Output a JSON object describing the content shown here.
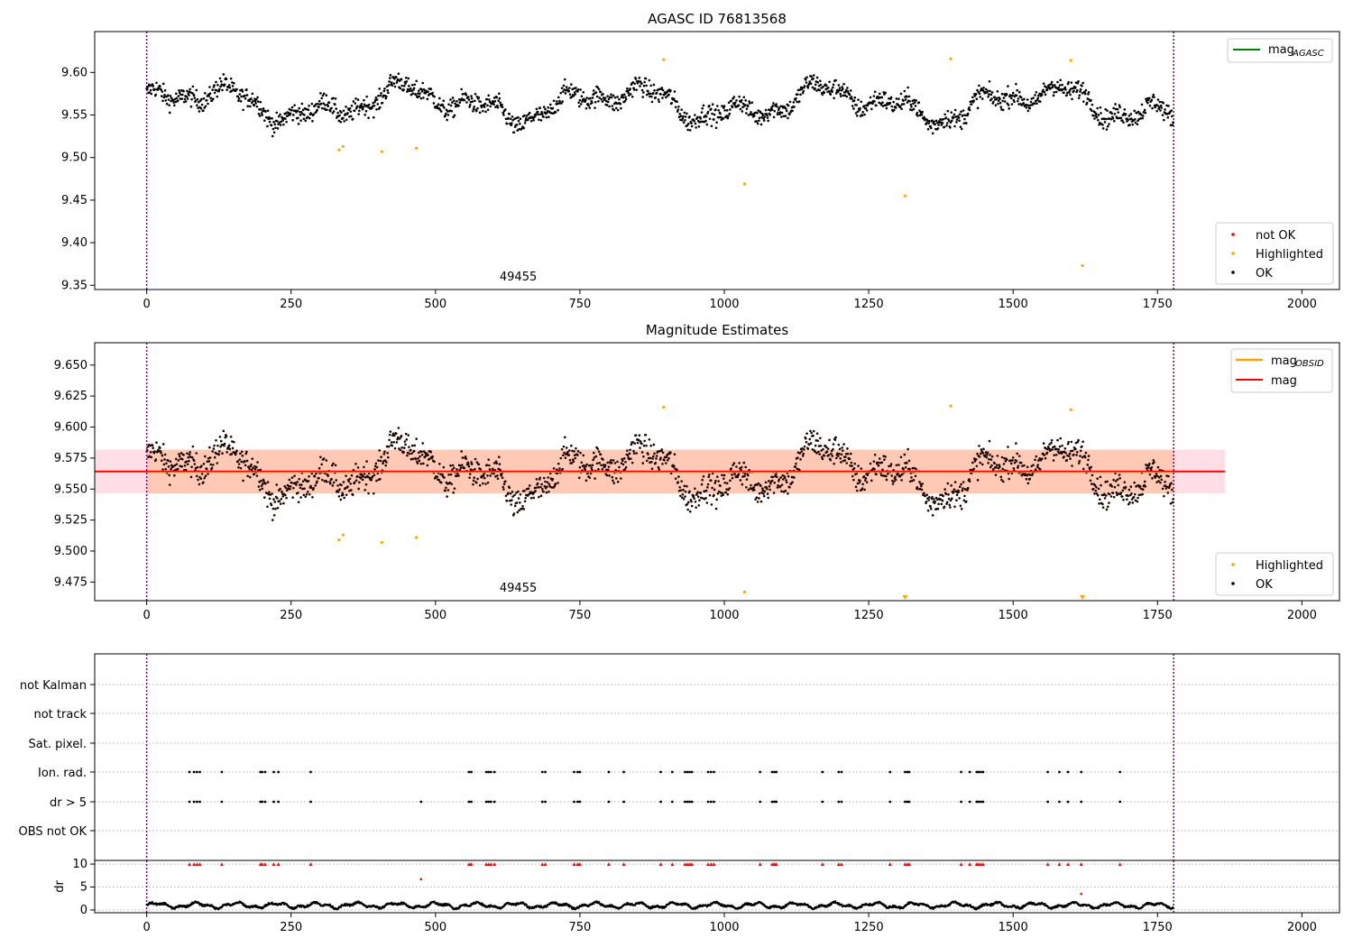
{
  "chart_data": [
    {
      "type": "scatter",
      "title": "AGASC ID 76813568",
      "xlim": [
        -90,
        2065
      ],
      "ylim": [
        9.345,
        9.648
      ],
      "xticks": [
        "0",
        "250",
        "500",
        "750",
        "1000",
        "1250",
        "1500",
        "1750",
        "2000"
      ],
      "yticks": [
        "9.35",
        "9.40",
        "9.45",
        "9.50",
        "9.55",
        "9.60"
      ],
      "obsid_label": "49455",
      "obsid_x": 890,
      "vlines": [
        0,
        1778
      ],
      "legend_line": {
        "label": "mag",
        "subscript": "AGASC",
        "color": "#008000",
        "placement": "upper right"
      },
      "legend_points": {
        "placement": "lower right",
        "items": [
          {
            "label": "not OK",
            "color": "#ff0000"
          },
          {
            "label": "Highlighted",
            "color": "#ffa500"
          },
          {
            "label": "OK",
            "color": "#000000"
          }
        ]
      },
      "highlighted": [
        [
          333,
          9.509
        ],
        [
          340,
          9.513
        ],
        [
          407,
          9.507
        ],
        [
          467,
          9.511
        ],
        [
          895,
          9.615
        ],
        [
          1035,
          9.469
        ],
        [
          1313,
          9.455
        ],
        [
          1392,
          9.616
        ],
        [
          1600,
          9.614
        ],
        [
          1620,
          9.373
        ]
      ],
      "ok_series": {
        "n": 1778,
        "mean": 9.5635,
        "noise": 0.0095,
        "color": "#000000"
      }
    },
    {
      "type": "scatter",
      "title": "Magnitude Estimates",
      "xlim": [
        -90,
        2065
      ],
      "ylim": [
        9.46,
        9.668
      ],
      "xticks": [
        "0",
        "250",
        "500",
        "750",
        "1000",
        "1250",
        "1500",
        "1750",
        "2000"
      ],
      "yticks": [
        "9.475",
        "9.500",
        "9.525",
        "9.550",
        "9.575",
        "9.600",
        "9.625",
        "9.650"
      ],
      "obsid_label": "49455",
      "obsid_x": 890,
      "vlines": [
        0,
        1778
      ],
      "mag": 9.5642,
      "mag_band": [
        9.5465,
        9.5818
      ],
      "band_extent_x": [
        -90,
        1867
      ],
      "obsid_band_extent_x": [
        0,
        1778
      ],
      "legend_line": {
        "placement": "upper right",
        "items": [
          {
            "label": "mag",
            "subscript": "OBSID",
            "color": "#ffa500"
          },
          {
            "label": "mag",
            "subscript": "",
            "color": "#ff0000"
          }
        ]
      },
      "legend_points": {
        "placement": "lower right",
        "items": [
          {
            "label": "Highlighted",
            "color": "#ffa500"
          },
          {
            "label": "OK",
            "color": "#000000"
          }
        ]
      },
      "highlighted": [
        [
          333,
          9.509
        ],
        [
          340,
          9.513
        ],
        [
          407,
          9.507
        ],
        [
          467,
          9.511
        ],
        [
          895,
          9.616
        ],
        [
          1035,
          9.467
        ],
        [
          1392,
          9.617
        ],
        [
          1600,
          9.614
        ]
      ],
      "clipped_below": [
        1313,
        1620
      ],
      "ok_series": {
        "n": 1778,
        "mean": 9.5635,
        "noise": 0.0095,
        "color": "#000000"
      }
    },
    {
      "type": "scatter",
      "title": "",
      "xlim": [
        -90,
        2065
      ],
      "categories": [
        "not Kalman",
        "not track",
        "Sat. pixel.",
        "Ion. rad.",
        "dr > 5",
        "OBS not OK"
      ],
      "flag_times": {
        "Ion. rad.": [
          74,
          82,
          87,
          92,
          130,
          197,
          200,
          205,
          220,
          228,
          284,
          558,
          562,
          588,
          592,
          596,
          602,
          685,
          690,
          740,
          746,
          750,
          800,
          826,
          890,
          910,
          932,
          936,
          940,
          944,
          972,
          977,
          982,
          1062,
          1083,
          1087,
          1090,
          1170,
          1198,
          1203,
          1287,
          1313,
          1317,
          1320,
          1410,
          1425,
          1437,
          1440,
          1444,
          1448,
          1560,
          1580,
          1595,
          1618,
          1685
        ],
        "dr > 5": [
          74,
          82,
          87,
          92,
          130,
          197,
          200,
          205,
          220,
          228,
          284,
          475,
          558,
          562,
          588,
          592,
          596,
          602,
          685,
          690,
          740,
          746,
          750,
          800,
          826,
          890,
          910,
          932,
          936,
          940,
          944,
          972,
          977,
          982,
          1062,
          1083,
          1087,
          1090,
          1170,
          1198,
          1203,
          1287,
          1313,
          1317,
          1320,
          1410,
          1425,
          1437,
          1440,
          1444,
          1448,
          1560,
          1580,
          1595,
          1618,
          1685
        ]
      },
      "vlines": [
        0,
        1778
      ],
      "xticks": [
        "0",
        "250",
        "500",
        "750",
        "1000",
        "1250",
        "1500",
        "1750",
        "2000"
      ]
    },
    {
      "type": "scatter",
      "title": "",
      "ylabel": "dr",
      "xlim": [
        -90,
        2065
      ],
      "ylim": [
        -0.6,
        10.8
      ],
      "yticks": [
        "0",
        "5",
        "10"
      ],
      "xticks": [
        "0",
        "250",
        "500",
        "750",
        "1000",
        "1250",
        "1500",
        "1750",
        "2000"
      ],
      "vlines": [
        0,
        1778
      ],
      "clipped_at_10": [
        74,
        82,
        87,
        92,
        130,
        197,
        200,
        205,
        220,
        228,
        284,
        558,
        562,
        588,
        592,
        596,
        602,
        685,
        690,
        740,
        746,
        750,
        800,
        826,
        890,
        910,
        932,
        936,
        940,
        944,
        972,
        977,
        982,
        1062,
        1083,
        1087,
        1090,
        1170,
        1198,
        1203,
        1287,
        1313,
        1317,
        1320,
        1410,
        1425,
        1437,
        1440,
        1444,
        1448,
        1560,
        1580,
        1595,
        1618,
        1685
      ],
      "outliers": [
        [
          475,
          6.7
        ],
        [
          1618,
          3.5
        ]
      ],
      "ok_series": {
        "n": 1778,
        "mean": 1.0,
        "noise": 0.35
      }
    }
  ]
}
